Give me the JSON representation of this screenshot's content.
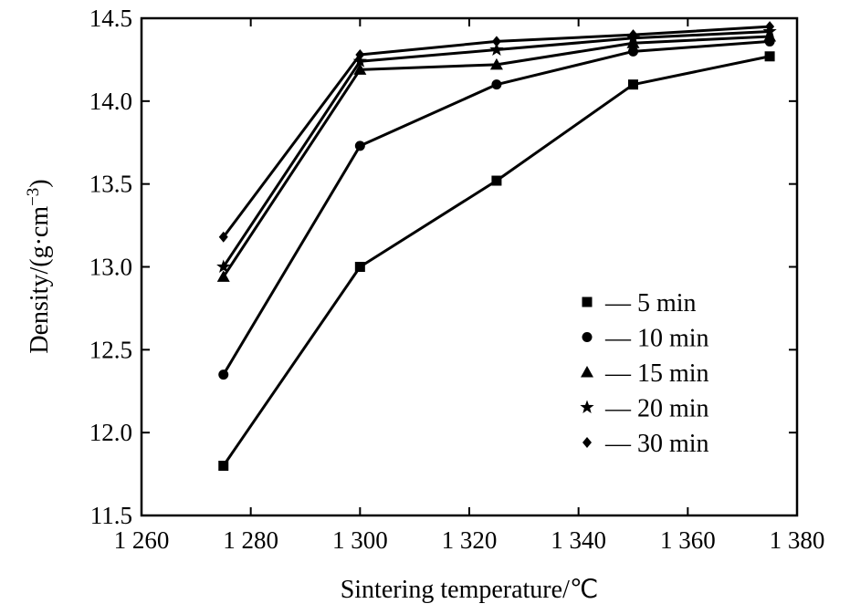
{
  "chart_data": {
    "type": "line",
    "title": "",
    "xlabel": "Sintering temperature/℃",
    "ylabel_main": "Density/(g·cm",
    "ylabel_exp": "−3",
    "ylabel_close": ")",
    "xlim": [
      1260,
      1380
    ],
    "ylim": [
      11.5,
      14.5
    ],
    "x_ticks": [
      1260,
      1280,
      1300,
      1320,
      1340,
      1360,
      1380
    ],
    "x_tick_labels": [
      "1 260",
      "1 280",
      "1 300",
      "1 320",
      "1 340",
      "1 360",
      "1 380"
    ],
    "y_ticks": [
      11.5,
      12.0,
      12.5,
      13.0,
      13.5,
      14.0,
      14.5
    ],
    "y_tick_labels": [
      "11.5",
      "12.0",
      "12.5",
      "13.0",
      "13.5",
      "14.0",
      "14.5"
    ],
    "x": [
      1275,
      1300,
      1325,
      1350,
      1375
    ],
    "legend_position": "lower-right",
    "grid": false,
    "series": [
      {
        "name": "— 5 min",
        "marker": "square",
        "values": [
          11.8,
          13.0,
          13.52,
          14.1,
          14.27
        ]
      },
      {
        "name": "— 10 min",
        "marker": "circle",
        "values": [
          12.35,
          13.73,
          14.1,
          14.3,
          14.36
        ]
      },
      {
        "name": "— 15 min",
        "marker": "triangle",
        "values": [
          12.94,
          14.19,
          14.22,
          14.35,
          14.39
        ]
      },
      {
        "name": "— 20 min",
        "marker": "star",
        "values": [
          13.0,
          14.24,
          14.31,
          14.38,
          14.42
        ]
      },
      {
        "name": "— 30 min",
        "marker": "diamond",
        "values": [
          13.18,
          14.28,
          14.36,
          14.4,
          14.45
        ]
      }
    ]
  }
}
